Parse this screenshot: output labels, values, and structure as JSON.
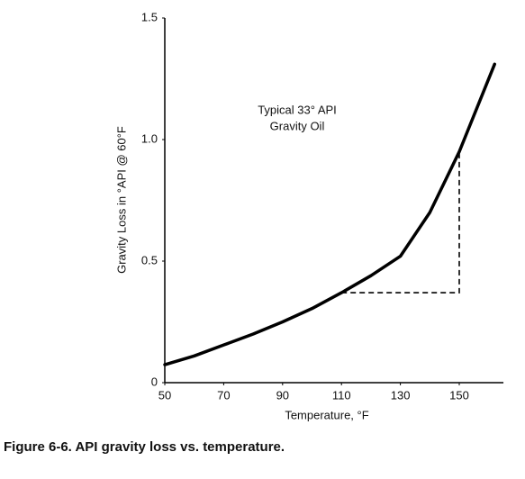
{
  "chart_data": {
    "type": "line",
    "caption": "Figure 6-6. API gravity loss vs. temperature.",
    "x_label": "Temperature, °F",
    "y_label": "Gravity Loss in °API @ 60°F",
    "annotation": [
      "Typical 33° API",
      "Gravity Oil"
    ],
    "xlim": [
      50,
      165
    ],
    "ylim": [
      0,
      1.5
    ],
    "xticks": [
      50,
      70,
      90,
      110,
      130,
      150
    ],
    "yticks": [
      0,
      0.5,
      {
        "value": 1.0,
        "label": "1.0"
      },
      {
        "value": 1.5,
        "label": "1.5"
      }
    ],
    "series": [
      {
        "color": "#000000",
        "x": [
          50,
          60,
          70,
          80,
          90,
          100,
          110,
          120,
          130,
          140,
          150,
          155,
          162
        ],
        "values": [
          0.074,
          0.11,
          0.155,
          0.2,
          0.25,
          0.305,
          0.37,
          0.44,
          0.52,
          0.7,
          0.95,
          1.1,
          1.31
        ]
      }
    ],
    "reference_path": {
      "x": [
        110,
        150,
        150
      ],
      "values": [
        0.37,
        0.37,
        0.95
      ]
    }
  }
}
